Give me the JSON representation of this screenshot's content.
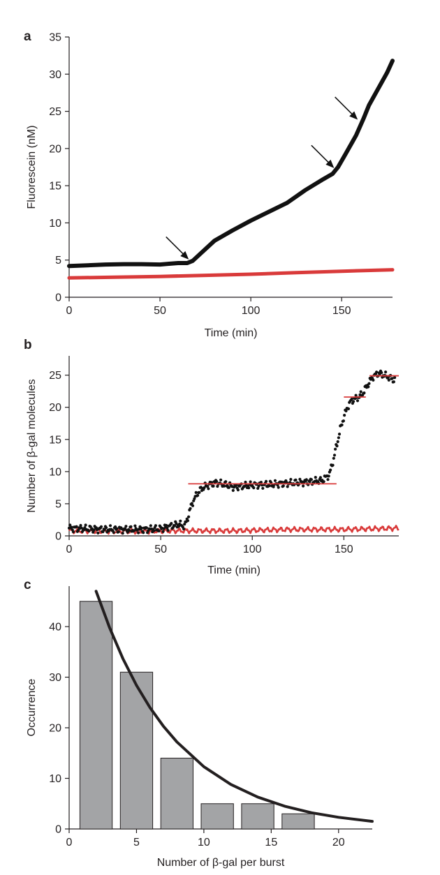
{
  "chart_data": [
    {
      "panel": "a",
      "type": "line",
      "xlabel": "Time (min)",
      "ylabel": "Fluorescein (nM)",
      "xlim": [
        0,
        178
      ],
      "ylim": [
        0,
        35
      ],
      "x_ticks": [
        0,
        50,
        100,
        150
      ],
      "y_ticks": [
        0,
        5,
        10,
        15,
        20,
        25,
        30,
        35
      ],
      "grid": false,
      "series": [
        {
          "color": "#111111",
          "x": [
            0,
            10,
            20,
            30,
            40,
            50,
            55,
            60,
            65,
            68,
            72,
            80,
            90,
            100,
            110,
            120,
            130,
            140,
            145,
            148,
            152,
            158,
            162,
            165,
            170,
            175,
            178
          ],
          "y": [
            4.2,
            4.3,
            4.4,
            4.45,
            4.45,
            4.4,
            4.5,
            4.6,
            4.6,
            4.9,
            5.8,
            7.6,
            9.0,
            10.3,
            11.5,
            12.7,
            14.4,
            15.9,
            16.6,
            17.5,
            19.2,
            21.8,
            24.0,
            25.8,
            28.0,
            30.2,
            31.8
          ]
        },
        {
          "color": "#d93a3a",
          "x": [
            0,
            25,
            50,
            75,
            100,
            125,
            150,
            178
          ],
          "y": [
            2.6,
            2.7,
            2.8,
            2.95,
            3.1,
            3.3,
            3.5,
            3.7
          ]
        }
      ],
      "annotations": [
        {
          "type": "arrow",
          "x": 67,
          "y": 4.7
        },
        {
          "type": "arrow",
          "x": 147,
          "y": 17.0
        },
        {
          "type": "arrow",
          "x": 160,
          "y": 23.5
        }
      ]
    },
    {
      "panel": "b",
      "type": "scatter",
      "xlabel": "Time (min)",
      "ylabel": "Number of β-gal molecules",
      "xlim": [
        0,
        180
      ],
      "ylim": [
        0,
        28
      ],
      "x_ticks": [
        0,
        50,
        100,
        150
      ],
      "y_ticks": [
        0,
        5,
        10,
        15,
        20,
        25
      ],
      "grid": false,
      "series": [
        {
          "color": "#111111",
          "x": [
            0,
            10,
            20,
            30,
            40,
            50,
            55,
            60,
            63,
            65,
            67,
            70,
            73,
            77,
            80,
            85,
            90,
            100,
            110,
            120,
            130,
            138,
            142,
            144,
            146,
            148,
            150,
            152,
            154,
            156,
            158,
            160,
            163,
            166,
            169,
            172,
            175,
            178
          ],
          "y": [
            1.2,
            1.1,
            1.0,
            1.0,
            1.0,
            1.1,
            1.5,
            1.8,
            1.5,
            3.0,
            5.0,
            6.6,
            7.5,
            8.0,
            8.3,
            8.0,
            7.6,
            7.9,
            8.0,
            8.2,
            8.4,
            8.6,
            9.5,
            11.5,
            14.0,
            16.5,
            18.5,
            20.0,
            21.0,
            21.3,
            21.6,
            22.0,
            23.5,
            24.8,
            25.3,
            25.0,
            24.6,
            24.2
          ]
        },
        {
          "color": "#d93a3a",
          "x": [
            0,
            30,
            60,
            90,
            120,
            150,
            180
          ],
          "y": [
            0.8,
            0.7,
            0.8,
            0.8,
            1.0,
            1.0,
            1.2
          ]
        }
      ],
      "levels": [
        {
          "y": 8.1,
          "x_start": 65,
          "x_end": 146,
          "color": "#d93a3a"
        },
        {
          "y": 21.6,
          "x_start": 150,
          "x_end": 162,
          "color": "#d93a3a"
        },
        {
          "y": 24.9,
          "x_start": 164,
          "x_end": 180,
          "color": "#d93a3a"
        }
      ]
    },
    {
      "panel": "c",
      "type": "bar",
      "xlabel": "Number of β-gal per burst",
      "ylabel": "Occurrence",
      "xlim": [
        0,
        22.5
      ],
      "ylim": [
        0,
        48
      ],
      "x_ticks": [
        0,
        5,
        10,
        15,
        20
      ],
      "y_ticks": [
        0,
        10,
        20,
        30,
        40
      ],
      "grid": false,
      "bar_color": "#a3a4a6",
      "bar_width": 2.4,
      "x": [
        2,
        5,
        8,
        11,
        14,
        17
      ],
      "values": [
        45,
        31,
        14,
        5,
        5,
        3
      ],
      "fit": {
        "color": "#231f20",
        "x": [
          2.0,
          3,
          4,
          5,
          6,
          7,
          8,
          10,
          12,
          14,
          16,
          18,
          20,
          22.5
        ],
        "y": [
          47.0,
          39.8,
          33.6,
          28.4,
          24.0,
          20.3,
          17.2,
          12.3,
          8.8,
          6.3,
          4.5,
          3.2,
          2.3,
          1.5
        ]
      }
    }
  ]
}
